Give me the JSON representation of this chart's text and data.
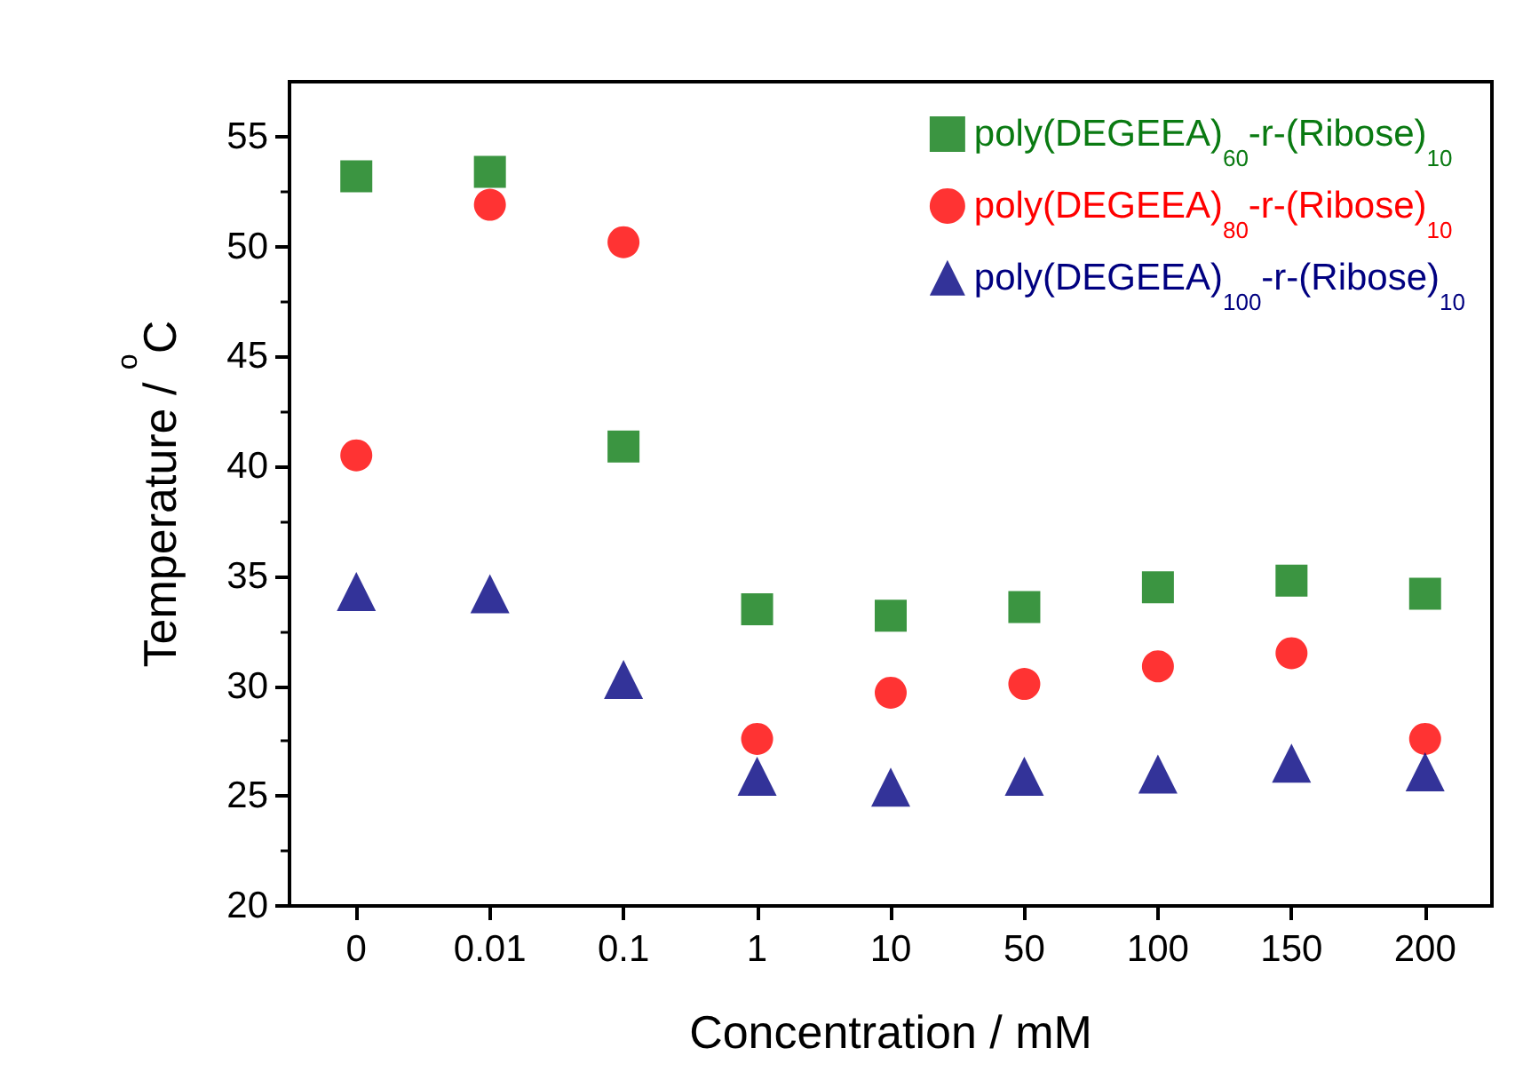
{
  "chart_data": {
    "type": "scatter",
    "xlabel": "Concentration / mM",
    "ylabel": "Temperature / $^{o}$C",
    "categories": [
      "0",
      "0.01",
      "0.1",
      "1",
      "10",
      "50",
      "100",
      "150",
      "200"
    ],
    "ylim": [
      20,
      57.5
    ],
    "yticks": [
      20,
      25,
      30,
      35,
      40,
      45,
      50,
      55
    ],
    "grid": false,
    "legend": "top right",
    "series": [
      {
        "name": "poly(DEGEEA)$_{60}$-r-(Ribose)$_{10}$",
        "color": "#0a7a12",
        "marker": "square",
        "values": [
          53.2,
          53.4,
          40.9,
          33.5,
          33.2,
          33.6,
          34.5,
          34.8,
          34.2
        ]
      },
      {
        "name": "poly(DEGEEA)$_{80}$-r-(Ribose)$_{10}$",
        "color": "#ff0000",
        "marker": "circle",
        "values": [
          40.5,
          51.9,
          50.2,
          27.6,
          29.7,
          30.1,
          30.9,
          31.5,
          27.6
        ]
      },
      {
        "name": "poly(DEGEEA)$_{100}$-r-(Ribose)$_{10}$",
        "color": "#000080",
        "marker": "triangle",
        "values": [
          34.3,
          34.2,
          30.3,
          25.9,
          25.4,
          25.9,
          26.0,
          26.5,
          26.1
        ]
      }
    ]
  }
}
